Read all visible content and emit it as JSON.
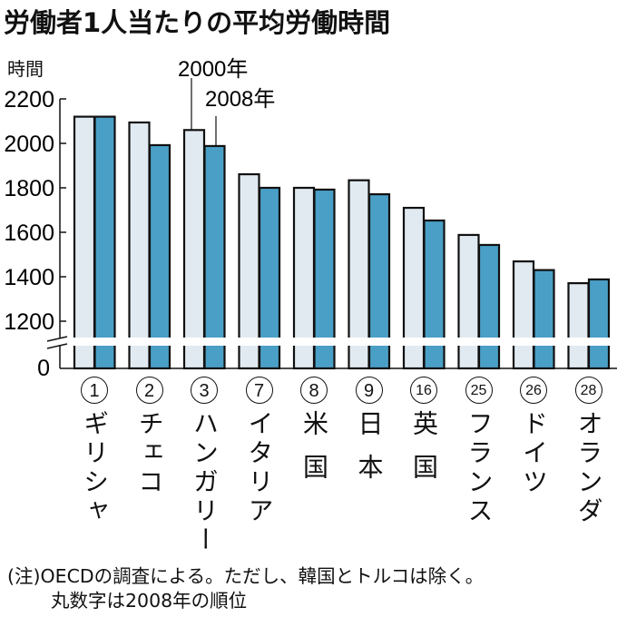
{
  "chart_data": {
    "type": "bar",
    "title": "労働者1人当たりの平均労働時間",
    "ylabel": "時間",
    "ylim": [
      1100,
      2200
    ],
    "axis_break": true,
    "yticks": [
      "2200",
      "2000",
      "1800",
      "1600",
      "1400",
      "1200",
      "0"
    ],
    "ytick_values": [
      2200,
      2000,
      1800,
      1600,
      1400,
      1200
    ],
    "categories": [
      "ギリシャ",
      "チェコ",
      "ハンガリー",
      "イタリア",
      "米国",
      "日本",
      "英国",
      "フランス",
      "ドイツ",
      "オランダ"
    ],
    "ranks": [
      "1",
      "2",
      "3",
      "7",
      "8",
      "9",
      "16",
      "25",
      "26",
      "28"
    ],
    "series": [
      {
        "name": "2000年",
        "color": "#e2eaf1",
        "values": [
          2120,
          2094,
          2060,
          1861,
          1800,
          1834,
          1710,
          1588,
          1469,
          1371
        ]
      },
      {
        "name": "2008年",
        "color": "#4a9fc6",
        "values": [
          2120,
          1992,
          1988,
          1800,
          1792,
          1771,
          1653,
          1543,
          1430,
          1388
        ]
      }
    ]
  },
  "note_line1": "(注)OECDの調査による。ただし、韓国とトルコは除く。",
  "note_line2": "丸数字は2008年の順位"
}
